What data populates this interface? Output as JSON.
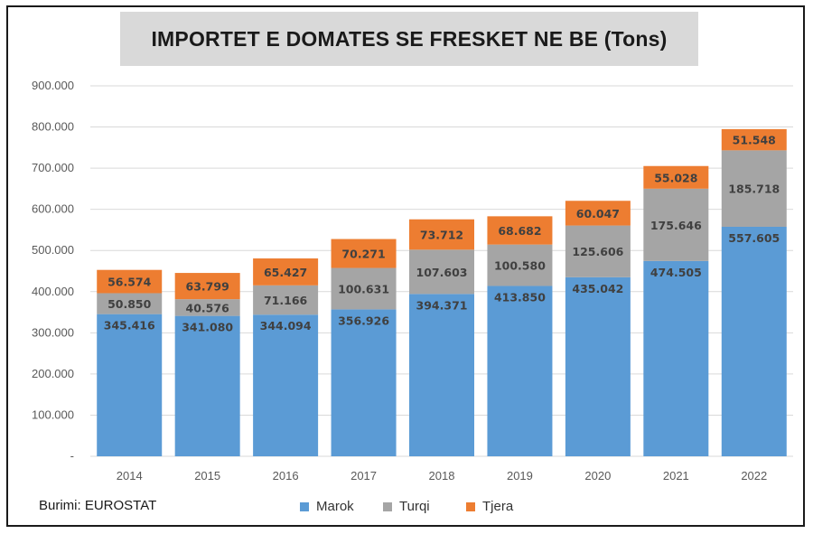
{
  "title": "IMPORTET E DOMATES SE FRESKET NE BE (Tons)",
  "source": "Burimi: EUROSTAT",
  "colors": {
    "Marok": "#5b9bd5",
    "Turqi": "#a5a5a5",
    "Tjera": "#ed7d31"
  },
  "chart_data": {
    "type": "bar",
    "stacked": true,
    "title": "IMPORTET E DOMATES SE FRESKET NE BE (Tons)",
    "categories": [
      "2014",
      "2015",
      "2016",
      "2017",
      "2018",
      "2019",
      "2020",
      "2021",
      "2022"
    ],
    "series": [
      {
        "name": "Marok",
        "values": [
          345416,
          341080,
          344094,
          356926,
          394371,
          413850,
          435042,
          474505,
          557605
        ],
        "labels": [
          "345.416",
          "341.080",
          "344.094",
          "356.926",
          "394.371",
          "413.850",
          "435.042",
          "474.505",
          "557.605"
        ]
      },
      {
        "name": "Turqi",
        "values": [
          50850,
          40576,
          71166,
          100631,
          107603,
          100580,
          125606,
          175646,
          185718
        ],
        "labels": [
          "50.850",
          "40.576",
          "71.166",
          "100.631",
          "107.603",
          "100.580",
          "125.606",
          "175.646",
          "185.718"
        ]
      },
      {
        "name": "Tjera",
        "values": [
          56574,
          63799,
          65427,
          70271,
          73712,
          68682,
          60047,
          55028,
          51548
        ],
        "labels": [
          "56.574",
          "63.799",
          "65.427",
          "70.271",
          "73.712",
          "68.682",
          "60.047",
          "55.028",
          "51.548"
        ]
      }
    ],
    "ylim": [
      0,
      900000
    ],
    "yticks": [
      0,
      100000,
      200000,
      300000,
      400000,
      500000,
      600000,
      700000,
      800000,
      900000
    ],
    "ytick_labels": [
      "-",
      "100.000",
      "200.000",
      "300.000",
      "400.000",
      "500.000",
      "600.000",
      "700.000",
      "800.000",
      "900.000"
    ],
    "grid": true,
    "legend": "bottom"
  }
}
